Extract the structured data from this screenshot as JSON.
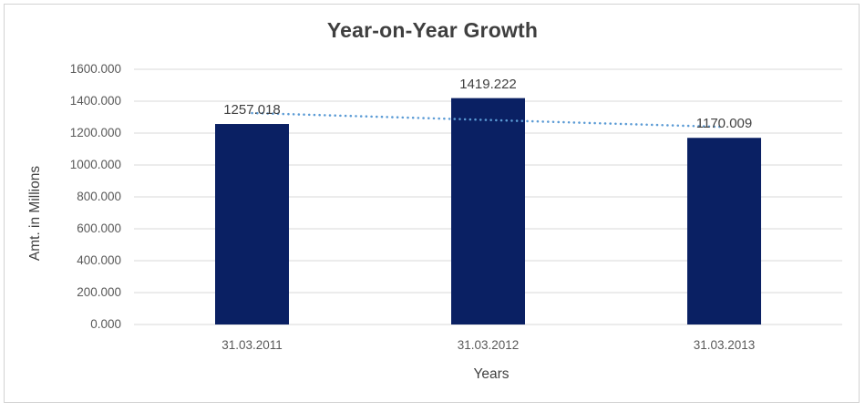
{
  "window": {
    "background": "#ffffff",
    "border_color": "#d2d2d2"
  },
  "chart_data": {
    "type": "bar",
    "title": "Year-on-Year Growth",
    "xlabel": "Years",
    "ylabel": "Amt. in Millions",
    "categories": [
      "31.03.2011",
      "31.03.2012",
      "31.03.2013"
    ],
    "values": [
      1257.018,
      1419.222,
      1170.009
    ],
    "data_labels": [
      "1257.018",
      "1419.222",
      "1170.009"
    ],
    "ylim": [
      0,
      1600
    ],
    "ytick_step": 200,
    "ytick_labels": [
      "0.000",
      "200.000",
      "400.000",
      "600.000",
      "800.000",
      "1000.000",
      "1200.000",
      "1400.000",
      "1600.000"
    ],
    "grid": true,
    "legend": "none",
    "bar_color": "#0a2063",
    "gridline_color": "#d9d9d9",
    "trendline": {
      "type": "linear",
      "style": "dotted",
      "color": "#5b9bd5"
    },
    "title_color": "#3f3f3f",
    "axis_title_color": "#404040",
    "tick_label_color": "#595959"
  }
}
